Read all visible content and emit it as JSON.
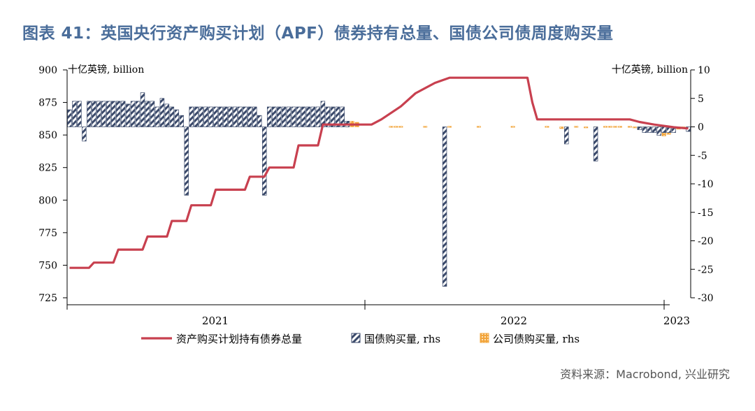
{
  "title": "图表 41：英国央行资产购买计划（APF）债券持有总量、国债公司债周度购买量",
  "source": "资料来源：Macrobond, 兴业研究",
  "chart_data": {
    "type": "bar+line",
    "unit_left": "十亿英镑, billion",
    "unit_right": "十亿英镑, billion",
    "left_axis": {
      "min": 725,
      "max": 900,
      "ticks": [
        725,
        750,
        775,
        800,
        825,
        850,
        875,
        900
      ]
    },
    "right_axis": {
      "min": -30,
      "max": 10,
      "ticks": [
        -30,
        -25,
        -20,
        -15,
        -10,
        -5,
        0,
        5,
        10
      ]
    },
    "x_axis": {
      "labels": [
        "2021",
        "2022",
        "2023"
      ]
    },
    "legend": [
      "资产购买计划持有债券总量",
      "国债购买量, rhs",
      "公司债购买量, rhs"
    ],
    "colors": {
      "line": "#c8404f",
      "gilt": "#3b4a6b",
      "corp": "#f2a43a"
    },
    "weeks_total": 128,
    "series": [
      {
        "name": "资产购买计划持有债券总量",
        "kind": "line",
        "points": [
          [
            0,
            748
          ],
          [
            4,
            748
          ],
          [
            5,
            752
          ],
          [
            9,
            752
          ],
          [
            10,
            762
          ],
          [
            15,
            762
          ],
          [
            16,
            772
          ],
          [
            20,
            772
          ],
          [
            21,
            784
          ],
          [
            24,
            784
          ],
          [
            25,
            796
          ],
          [
            29,
            796
          ],
          [
            30,
            808
          ],
          [
            36,
            808
          ],
          [
            37,
            818
          ],
          [
            40,
            818
          ],
          [
            41,
            825
          ],
          [
            46,
            825
          ],
          [
            47,
            842
          ],
          [
            51,
            842
          ],
          [
            52,
            858
          ],
          [
            62,
            858
          ],
          [
            64,
            862
          ],
          [
            68,
            872
          ],
          [
            71,
            882
          ],
          [
            75,
            890
          ],
          [
            78,
            894
          ],
          [
            94,
            894
          ],
          [
            95,
            875
          ],
          [
            96,
            862
          ],
          [
            115,
            862
          ],
          [
            117,
            860
          ],
          [
            120,
            858
          ],
          [
            124,
            856
          ],
          [
            127,
            855
          ]
        ]
      },
      {
        "name": "国债购买量, rhs",
        "kind": "bar",
        "values": [
          [
            0,
            3
          ],
          [
            1,
            4.5
          ],
          [
            2,
            4.5
          ],
          [
            3,
            -2.5
          ],
          [
            4,
            4.5
          ],
          [
            5,
            4.5
          ],
          [
            6,
            4.5
          ],
          [
            7,
            4.5
          ],
          [
            8,
            4.5
          ],
          [
            9,
            4.5
          ],
          [
            10,
            4.5
          ],
          [
            11,
            4.5
          ],
          [
            12,
            4
          ],
          [
            13,
            4.5
          ],
          [
            14,
            4.5
          ],
          [
            15,
            6
          ],
          [
            16,
            4.5
          ],
          [
            17,
            4.5
          ],
          [
            18,
            3.5
          ],
          [
            19,
            5
          ],
          [
            20,
            4
          ],
          [
            21,
            3.5
          ],
          [
            22,
            3
          ],
          [
            23,
            2
          ],
          [
            24,
            -12
          ],
          [
            25,
            3.5
          ],
          [
            26,
            3.5
          ],
          [
            27,
            3.5
          ],
          [
            28,
            3.5
          ],
          [
            29,
            3.5
          ],
          [
            30,
            3.5
          ],
          [
            31,
            3.5
          ],
          [
            32,
            3.5
          ],
          [
            33,
            3.5
          ],
          [
            34,
            3.5
          ],
          [
            35,
            3.5
          ],
          [
            36,
            3.5
          ],
          [
            37,
            3.5
          ],
          [
            38,
            3.5
          ],
          [
            39,
            2
          ],
          [
            40,
            -12
          ],
          [
            41,
            3.5
          ],
          [
            42,
            3.5
          ],
          [
            43,
            3.5
          ],
          [
            44,
            3.5
          ],
          [
            45,
            3.5
          ],
          [
            46,
            3.5
          ],
          [
            47,
            3.5
          ],
          [
            48,
            3.5
          ],
          [
            49,
            3.5
          ],
          [
            50,
            3.5
          ],
          [
            51,
            3.5
          ],
          [
            52,
            4.5
          ],
          [
            53,
            3.5
          ],
          [
            54,
            3.5
          ],
          [
            55,
            3.5
          ],
          [
            56,
            3.5
          ],
          [
            57,
            1
          ],
          [
            77,
            -28
          ],
          [
            102,
            -3
          ],
          [
            108,
            -6
          ],
          [
            117,
            -0.5
          ],
          [
            118,
            -1
          ],
          [
            119,
            -1
          ],
          [
            120,
            -1
          ],
          [
            121,
            -1.5
          ],
          [
            122,
            -1
          ],
          [
            123,
            -1
          ],
          [
            124,
            -1
          ],
          [
            127,
            -0.8
          ]
        ]
      },
      {
        "name": "公司债购买量, rhs",
        "kind": "bar",
        "values": [
          [
            57,
            0.8
          ],
          [
            58,
            1
          ],
          [
            59,
            0.8
          ],
          [
            66,
            0.1
          ],
          [
            67,
            0.1
          ],
          [
            68,
            0.1
          ],
          [
            73,
            0.1
          ],
          [
            78,
            0.1
          ],
          [
            84,
            0.1
          ],
          [
            91,
            0.1
          ],
          [
            98,
            0.1
          ],
          [
            101,
            -0.3
          ],
          [
            104,
            0.1
          ],
          [
            106,
            -0.1
          ],
          [
            108,
            -0.5
          ],
          [
            110,
            0.1
          ],
          [
            111,
            0.1
          ],
          [
            112,
            0.1
          ],
          [
            113,
            0.1
          ],
          [
            115,
            0.1
          ],
          [
            116,
            -0.1
          ],
          [
            117,
            -0.3
          ],
          [
            118,
            -0.6
          ],
          [
            119,
            -0.8
          ],
          [
            120,
            -1
          ],
          [
            121,
            -1.3
          ],
          [
            122,
            -1.6
          ],
          [
            123,
            -1.3
          ],
          [
            124,
            -0.6
          ],
          [
            125,
            -0.4
          ],
          [
            126,
            -0.2
          ]
        ]
      }
    ]
  }
}
